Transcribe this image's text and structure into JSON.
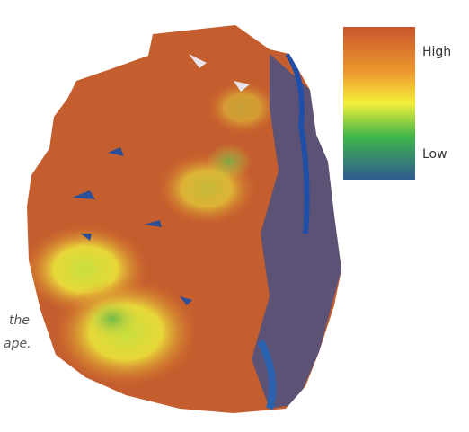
{
  "legend": {
    "high_label": "High",
    "low_label": "Low"
  },
  "caption": {
    "line1": "the",
    "line2": "ape."
  }
}
